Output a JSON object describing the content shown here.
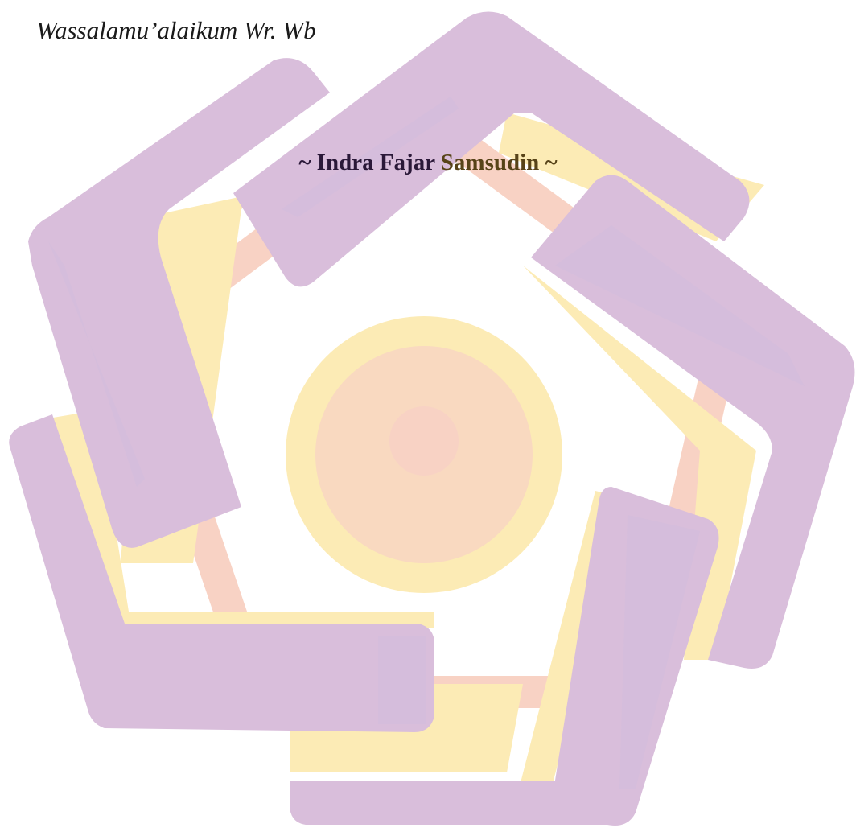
{
  "closing_text": "Wassalamu’alaikum Wr. Wb",
  "signature": {
    "part_a": "~ Indra Fajar ",
    "part_b": "Samsudin ~"
  },
  "watermark": {
    "icon": "university-logo-watermark",
    "colors": {
      "purple": "#d9bedb",
      "purple_dark": "#d3bddc",
      "yellow": "#fcebb5",
      "peach": "#f9d9c0",
      "pink": "#f8d2c4"
    }
  }
}
